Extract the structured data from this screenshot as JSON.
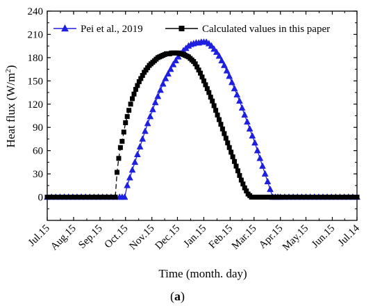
{
  "chart_data": {
    "type": "line",
    "title": "",
    "caption": "(a)",
    "xlabel": "Time (month. day)",
    "ylabel": "Heat flux (W/m²)",
    "ylim": [
      -30,
      240
    ],
    "yticks": [
      0,
      30,
      60,
      90,
      120,
      150,
      180,
      210,
      240
    ],
    "xlim": [
      0,
      364
    ],
    "x_unit": "days since Jul.15",
    "xtick_values": [
      0,
      31,
      62,
      92,
      123,
      153,
      184,
      215,
      243,
      274,
      304,
      335,
      364
    ],
    "xtick_labels": [
      "Jul.15",
      "Aug.15",
      "Sep.15",
      "Oct.15",
      "Nov.15",
      "Dec.15",
      "Jan.15",
      "Feb.15",
      "Mar.15",
      "Apr.15",
      "May.15",
      "Jun.15",
      "Jul.14"
    ],
    "grid": false,
    "legend_position": "top",
    "series": [
      {
        "name": "Pei et al., 2019",
        "marker": "triangle",
        "color": "#1f1fe0",
        "x": [
          0,
          5,
          10,
          15,
          20,
          25,
          30,
          35,
          40,
          45,
          50,
          55,
          60,
          65,
          70,
          75,
          80,
          85,
          88,
          91,
          94,
          97,
          100,
          103,
          106,
          109,
          112,
          115,
          118,
          121,
          124,
          127,
          130,
          133,
          136,
          139,
          142,
          145,
          148,
          151,
          154,
          157,
          160,
          163,
          166,
          169,
          172,
          175,
          178,
          181,
          184,
          187,
          190,
          193,
          196,
          199,
          202,
          205,
          208,
          211,
          214,
          217,
          220,
          223,
          226,
          229,
          232,
          235,
          238,
          241,
          244,
          247,
          250,
          253,
          256,
          259,
          262,
          265,
          268,
          271,
          274,
          279,
          284,
          289,
          294,
          299,
          304,
          309,
          314,
          319,
          324,
          329,
          334,
          339,
          344,
          349,
          354,
          359,
          364
        ],
        "y": [
          0,
          0,
          0,
          0,
          0,
          0,
          0,
          0,
          0,
          0,
          0,
          0,
          0,
          0,
          0,
          0,
          0,
          0,
          0,
          0,
          15,
          25,
          35,
          45,
          55,
          65,
          75,
          85,
          95,
          104,
          113,
          122,
          130,
          138,
          146,
          153,
          159,
          165,
          171,
          176,
          181,
          185,
          189,
          192,
          195,
          197,
          198,
          199,
          199,
          200,
          200,
          200,
          198,
          195,
          191,
          187,
          182,
          176,
          170,
          163,
          156,
          148,
          140,
          132,
          124,
          115,
          106,
          97,
          88,
          79,
          70,
          60,
          50,
          40,
          30,
          20,
          10,
          0,
          0,
          0,
          0,
          0,
          0,
          0,
          0,
          0,
          0,
          0,
          0,
          0,
          0,
          0,
          0,
          0,
          0,
          0,
          0,
          0,
          0
        ]
      },
      {
        "name": "Calculated values in this paper",
        "marker": "square",
        "color": "#000000",
        "x": [
          0,
          5,
          10,
          15,
          20,
          25,
          30,
          35,
          40,
          45,
          50,
          55,
          60,
          65,
          70,
          75,
          80,
          82,
          84,
          86,
          88,
          90,
          92,
          94,
          96,
          98,
          100,
          102,
          104,
          106,
          108,
          110,
          112,
          114,
          116,
          118,
          120,
          122,
          124,
          126,
          128,
          130,
          132,
          134,
          136,
          138,
          140,
          142,
          144,
          146,
          148,
          150,
          152,
          154,
          156,
          158,
          160,
          162,
          164,
          166,
          168,
          170,
          172,
          174,
          176,
          178,
          180,
          182,
          184,
          186,
          188,
          190,
          192,
          194,
          196,
          198,
          200,
          202,
          204,
          206,
          208,
          210,
          212,
          214,
          216,
          218,
          220,
          222,
          224,
          226,
          228,
          230,
          232,
          234,
          236,
          238,
          240,
          242,
          244,
          246,
          248,
          250,
          252,
          254,
          256,
          258,
          260,
          262,
          264,
          266,
          268,
          270,
          272,
          274,
          279,
          284,
          289,
          294,
          299,
          304,
          309,
          314,
          319,
          324,
          329,
          334,
          339,
          344,
          349,
          354,
          359,
          364
        ],
        "y": [
          0,
          0,
          0,
          0,
          0,
          0,
          0,
          0,
          0,
          0,
          0,
          0,
          0,
          0,
          0,
          0,
          0,
          32,
          50,
          64,
          72,
          84,
          96,
          104,
          112,
          120,
          127,
          133,
          139,
          144,
          149,
          153,
          157,
          161,
          164,
          167,
          170,
          172,
          174,
          176,
          178,
          180,
          181,
          182,
          183,
          184,
          185,
          185,
          185,
          186,
          186,
          186,
          186,
          186,
          185,
          185,
          184,
          183,
          182,
          181,
          179,
          177,
          175,
          172,
          168,
          164,
          160,
          155,
          150,
          145,
          140,
          135,
          129,
          124,
          118,
          112,
          106,
          100,
          94,
          88,
          82,
          76,
          70,
          64,
          58,
          52,
          46,
          40,
          34,
          28,
          22,
          17,
          12,
          8,
          4,
          2,
          0,
          0,
          0,
          0,
          0,
          0,
          0,
          0,
          0,
          0,
          0,
          0,
          0,
          0,
          0,
          0,
          0,
          0,
          0,
          0,
          0,
          0,
          0,
          0,
          0,
          0,
          0,
          0,
          0,
          0,
          0,
          0,
          0,
          0,
          0,
          0
        ]
      }
    ]
  }
}
